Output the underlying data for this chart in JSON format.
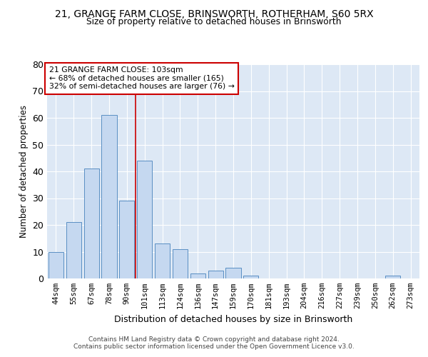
{
  "title_line1": "21, GRANGE FARM CLOSE, BRINSWORTH, ROTHERHAM, S60 5RX",
  "title_line2": "Size of property relative to detached houses in Brinsworth",
  "xlabel": "Distribution of detached houses by size in Brinsworth",
  "ylabel": "Number of detached properties",
  "bar_labels": [
    "44sqm",
    "55sqm",
    "67sqm",
    "78sqm",
    "90sqm",
    "101sqm",
    "113sqm",
    "124sqm",
    "136sqm",
    "147sqm",
    "159sqm",
    "170sqm",
    "181sqm",
    "193sqm",
    "204sqm",
    "216sqm",
    "227sqm",
    "239sqm",
    "250sqm",
    "262sqm",
    "273sqm"
  ],
  "bar_values": [
    10,
    21,
    41,
    61,
    29,
    44,
    13,
    11,
    2,
    3,
    4,
    1,
    0,
    0,
    0,
    0,
    0,
    0,
    0,
    1,
    0
  ],
  "bar_color": "#c5d8f0",
  "bar_edge_color": "#5a8fc3",
  "annotation_line1": "21 GRANGE FARM CLOSE: 103sqm",
  "annotation_line2": "← 68% of detached houses are smaller (165)",
  "annotation_line3": "32% of semi-detached houses are larger (76) →",
  "vline_x_index": 5,
  "vline_color": "#cc0000",
  "annotation_box_color": "#cc0000",
  "ylim": [
    0,
    80
  ],
  "yticks": [
    0,
    10,
    20,
    30,
    40,
    50,
    60,
    70,
    80
  ],
  "background_color": "#dde8f5",
  "footer_line1": "Contains HM Land Registry data © Crown copyright and database right 2024.",
  "footer_line2": "Contains public sector information licensed under the Open Government Licence v3.0."
}
